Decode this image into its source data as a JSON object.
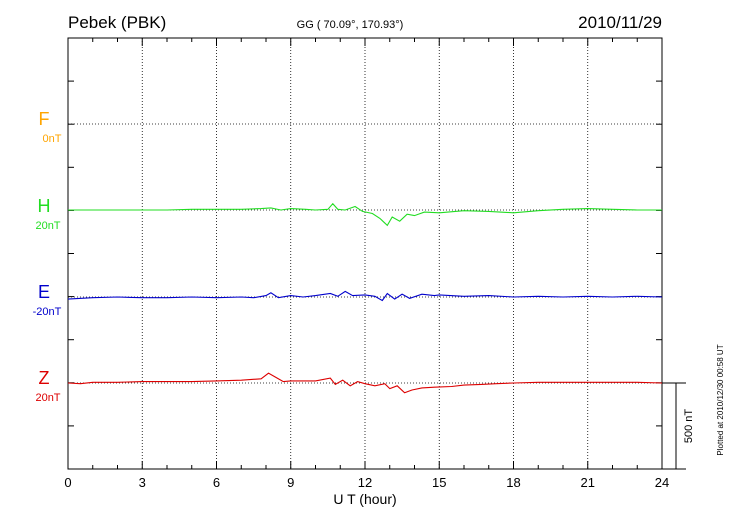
{
  "chart_data": {
    "type": "line",
    "title": "Pebek (PBK)",
    "subtitle": "GG ( 70.09°, 170.93°)",
    "date": "2010/11/29",
    "xlabel": "U T (hour)",
    "xlim": [
      0,
      24
    ],
    "xticks": [
      "0",
      "3",
      "6",
      "9",
      "12",
      "15",
      "18",
      "21",
      "24"
    ],
    "scale_bar_label": "500 nT",
    "side_note": "Plotted at 2010/12/30 00:58 UT",
    "grid": true,
    "series": [
      {
        "name": "F",
        "baseline_label": "0nT",
        "color": "#FFA500",
        "points": []
      },
      {
        "name": "H",
        "baseline_label": "20nT",
        "color": "#22DD22",
        "points": [
          [
            0,
            0
          ],
          [
            1,
            0
          ],
          [
            2,
            0
          ],
          [
            3,
            0
          ],
          [
            4,
            0
          ],
          [
            5,
            1
          ],
          [
            6,
            1
          ],
          [
            7,
            1
          ],
          [
            7.8,
            2
          ],
          [
            8.2,
            3
          ],
          [
            8.6,
            0
          ],
          [
            9,
            2
          ],
          [
            9.6,
            1
          ],
          [
            10,
            0
          ],
          [
            10.5,
            1
          ],
          [
            10.7,
            9
          ],
          [
            10.9,
            1
          ],
          [
            11.2,
            0
          ],
          [
            11.6,
            5
          ],
          [
            11.9,
            -2
          ],
          [
            12.3,
            -5
          ],
          [
            12.6,
            -12
          ],
          [
            12.9,
            -22
          ],
          [
            13.1,
            -10
          ],
          [
            13.4,
            -16
          ],
          [
            13.7,
            -6
          ],
          [
            14,
            -8
          ],
          [
            14.4,
            -3
          ],
          [
            15,
            -4
          ],
          [
            16,
            -1
          ],
          [
            17,
            -2
          ],
          [
            18,
            -4
          ],
          [
            19,
            -1
          ],
          [
            20,
            1
          ],
          [
            21,
            2
          ],
          [
            22,
            1
          ],
          [
            23,
            0
          ],
          [
            24,
            0
          ]
        ]
      },
      {
        "name": "E",
        "baseline_label": "-20nT",
        "color": "#0000CC",
        "points": [
          [
            0,
            -3
          ],
          [
            1,
            -1
          ],
          [
            2,
            0
          ],
          [
            3,
            -1
          ],
          [
            4,
            -1
          ],
          [
            5,
            0
          ],
          [
            6,
            -1
          ],
          [
            7,
            0
          ],
          [
            7.5,
            -1
          ],
          [
            8,
            2
          ],
          [
            8.2,
            6
          ],
          [
            8.5,
            -1
          ],
          [
            9,
            2
          ],
          [
            9.5,
            0
          ],
          [
            10,
            2
          ],
          [
            10.6,
            5
          ],
          [
            10.9,
            1
          ],
          [
            11.2,
            8
          ],
          [
            11.5,
            2
          ],
          [
            12,
            3
          ],
          [
            12.4,
            1
          ],
          [
            12.7,
            -5
          ],
          [
            12.9,
            5
          ],
          [
            13.2,
            -3
          ],
          [
            13.5,
            4
          ],
          [
            13.8,
            -2
          ],
          [
            14.3,
            4
          ],
          [
            14.8,
            2
          ],
          [
            15,
            3
          ],
          [
            16,
            1
          ],
          [
            17,
            2
          ],
          [
            18,
            0
          ],
          [
            19,
            1
          ],
          [
            20,
            0
          ],
          [
            21,
            1
          ],
          [
            22,
            0
          ],
          [
            23,
            1
          ],
          [
            24,
            0
          ]
        ]
      },
      {
        "name": "Z",
        "baseline_label": "20nT",
        "color": "#DD0000",
        "points": [
          [
            0,
            0
          ],
          [
            0.5,
            -1
          ],
          [
            1,
            1
          ],
          [
            2,
            1
          ],
          [
            3,
            2
          ],
          [
            4,
            2
          ],
          [
            5,
            2
          ],
          [
            6,
            3
          ],
          [
            7,
            4
          ],
          [
            7.8,
            6
          ],
          [
            8.1,
            14
          ],
          [
            8.4,
            8
          ],
          [
            8.7,
            2
          ],
          [
            9,
            3
          ],
          [
            10,
            3
          ],
          [
            10.6,
            7
          ],
          [
            10.8,
            -2
          ],
          [
            11.1,
            4
          ],
          [
            11.4,
            -4
          ],
          [
            11.7,
            2
          ],
          [
            12,
            -1
          ],
          [
            12.4,
            -4
          ],
          [
            12.8,
            -1
          ],
          [
            13,
            -8
          ],
          [
            13.3,
            -4
          ],
          [
            13.6,
            -14
          ],
          [
            13.9,
            -10
          ],
          [
            14.3,
            -7
          ],
          [
            14.8,
            -6
          ],
          [
            15.5,
            -5
          ],
          [
            16,
            -3
          ],
          [
            16.7,
            -2
          ],
          [
            17.3,
            -1
          ],
          [
            18,
            0
          ],
          [
            19,
            1
          ],
          [
            20,
            1
          ],
          [
            21,
            1
          ],
          [
            22,
            1
          ],
          [
            23,
            1
          ],
          [
            24,
            0
          ]
        ]
      }
    ]
  }
}
